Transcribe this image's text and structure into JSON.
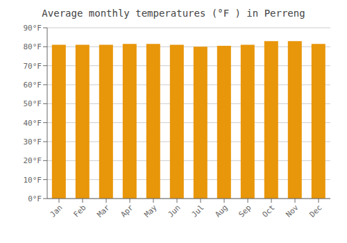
{
  "chart_data": {
    "type": "bar",
    "title": "Average monthly temperatures (°F ) in Perreng",
    "categories": [
      "Jan",
      "Feb",
      "Mar",
      "Apr",
      "May",
      "Jun",
      "Jul",
      "Aug",
      "Sep",
      "Oct",
      "Nov",
      "Dec"
    ],
    "values": [
      81.0,
      81.0,
      81.0,
      81.5,
      81.5,
      81.0,
      80.0,
      80.5,
      81.0,
      83.0,
      83.0,
      81.5
    ],
    "color": "#E8960A",
    "ylim": [
      0,
      90
    ],
    "yticks": [
      {
        "value": 0,
        "label": "0°F"
      },
      {
        "value": 10,
        "label": "10°F"
      },
      {
        "value": 20,
        "label": "20°F"
      },
      {
        "value": 30,
        "label": "30°F"
      },
      {
        "value": 40,
        "label": "40°F"
      },
      {
        "value": 50,
        "label": "50°F"
      },
      {
        "value": 60,
        "label": "60°F"
      },
      {
        "value": 70,
        "label": "70°F"
      },
      {
        "value": 80,
        "label": "80°F"
      },
      {
        "value": 90,
        "label": "90°F"
      }
    ],
    "grid": true
  }
}
